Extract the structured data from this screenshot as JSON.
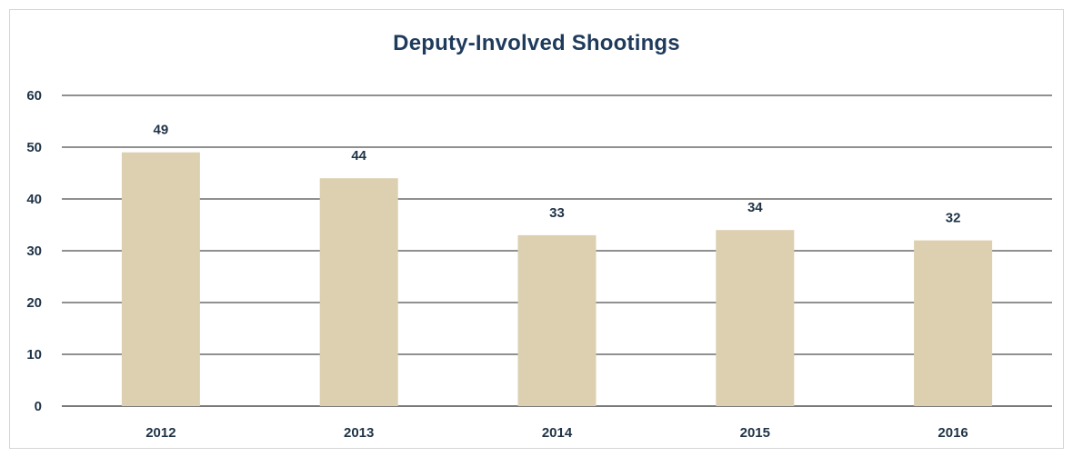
{
  "chart_data": {
    "type": "bar",
    "title": "Deputy-Involved Shootings",
    "categories": [
      "2012",
      "2013",
      "2014",
      "2015",
      "2016"
    ],
    "values": [
      49,
      44,
      33,
      34,
      32
    ],
    "data_labels": [
      "49",
      "44",
      "33",
      "34",
      "32"
    ],
    "ylim": [
      0,
      60
    ],
    "yticks": [
      0,
      10,
      20,
      30,
      40,
      50,
      60
    ],
    "xlabel": "",
    "ylabel": "",
    "grid": true,
    "legend": "none",
    "colors": {
      "bar": "#dcd0b0",
      "grid": "#4d4d4d",
      "title": "#1f3b5c",
      "text": "#1f3347"
    }
  }
}
